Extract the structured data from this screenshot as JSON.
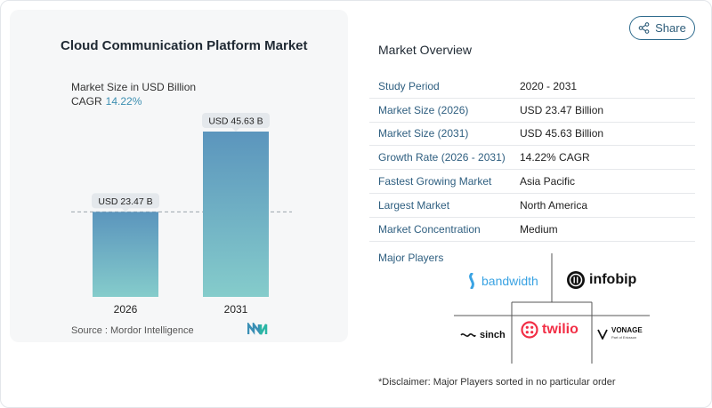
{
  "chart": {
    "title": "Cloud Communication Platform Market",
    "subtitle": "Market Size in USD Billion",
    "cagr_label": "CAGR",
    "cagr_value": "14.22%",
    "source": "Source :  Mordor Intelligence"
  },
  "chart_data": {
    "type": "bar",
    "categories": [
      "2026",
      "2031"
    ],
    "values": [
      23.47,
      45.63
    ],
    "data_labels": [
      "USD 23.47 B",
      "USD 45.63 B"
    ],
    "colors": [
      "#6aa6c4",
      "#6aa6c4"
    ]
  },
  "share": {
    "label": "Share",
    "icon": "share-icon"
  },
  "overview": {
    "title": "Market Overview",
    "rows": [
      {
        "key": "Study Period",
        "value": "2020 - 2031"
      },
      {
        "key": "Market Size (2026)",
        "value": "USD 23.47 Billion"
      },
      {
        "key": "Market Size (2031)",
        "value": "USD 45.63 Billion"
      },
      {
        "key": "Growth Rate (2026 - 2031)",
        "value": "14.22% CAGR"
      },
      {
        "key": "Fastest Growing Market",
        "value": "Asia Pacific"
      },
      {
        "key": "Largest Market",
        "value": "North America"
      },
      {
        "key": "Market Concentration",
        "value": "Medium"
      }
    ]
  },
  "players": {
    "title": "Major Players",
    "names": [
      "bandwidth",
      "infobip",
      "sinch",
      "twilio",
      "VONAGE"
    ],
    "vonage_sub": "Part of Ericsson"
  },
  "disclaimer": "*Disclaimer: Major Players sorted in no particular order",
  "colors": {
    "accent": "#2f5f80",
    "bar_top": "#5b95bd",
    "bar_bottom": "#85cccb",
    "twilio": "#f22f46",
    "bandwidth": "#3aa3e3"
  }
}
